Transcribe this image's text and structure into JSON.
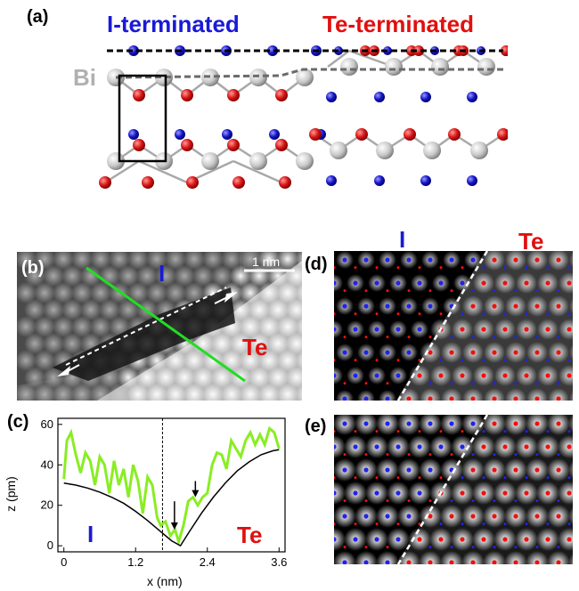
{
  "figure": {
    "panels": {
      "a": {
        "label": "(a)",
        "left_title": "I-terminated",
        "right_title": "Te-terminated",
        "bi_label": "Bi",
        "colors": {
          "iodine": "#1414b4",
          "tellurium": "#d61414",
          "bismuth": "#b4b4b4",
          "title_blue": "#1a1ad6",
          "title_red": "#e01010"
        }
      },
      "b": {
        "label": "(b)",
        "scale_bar": "1 nm",
        "left_region": "I",
        "right_region": "Te",
        "line_profile_color": "#22dd22"
      },
      "c": {
        "label": "(c)",
        "left_region": "I",
        "right_region": "Te"
      },
      "d": {
        "label": "(d)",
        "left_region": "I",
        "right_region": "Te"
      },
      "e": {
        "label": "(e)"
      }
    }
  },
  "chart_data": {
    "type": "line",
    "xlabel": "x (nm)",
    "ylabel": "z (pm)",
    "xlim": [
      -0.1,
      3.7
    ],
    "ylim": [
      -3,
      63
    ],
    "xticks": [
      "0",
      "1.2",
      "2.4",
      "3.6"
    ],
    "yticks": [
      "0",
      "20",
      "40",
      "60"
    ],
    "vline_x": 1.65,
    "series": [
      {
        "color": "#88ee22",
        "x": [
          0.0,
          0.05,
          0.12,
          0.2,
          0.28,
          0.36,
          0.44,
          0.52,
          0.6,
          0.68,
          0.76,
          0.84,
          0.92,
          1.0,
          1.08,
          1.16,
          1.24,
          1.32,
          1.4,
          1.48,
          1.56,
          1.62,
          1.7,
          1.78,
          1.86,
          1.92,
          2.0,
          2.08,
          2.16,
          2.24,
          2.32,
          2.4,
          2.48,
          2.56,
          2.64,
          2.72,
          2.8,
          2.88,
          2.96,
          3.04,
          3.12,
          3.2,
          3.28,
          3.36,
          3.44,
          3.52,
          3.6
        ],
        "y": [
          33,
          52,
          56,
          45,
          36,
          46,
          42,
          30,
          44,
          40,
          26,
          42,
          30,
          38,
          24,
          40,
          32,
          16,
          34,
          30,
          14,
          10,
          12,
          5,
          8,
          2,
          10,
          22,
          24,
          20,
          24,
          26,
          40,
          46,
          45,
          38,
          52,
          48,
          44,
          52,
          56,
          50,
          55,
          50,
          58,
          56,
          48
        ]
      },
      {
        "color": "#000000",
        "x": [
          0.0,
          0.2,
          0.4,
          0.6,
          0.8,
          1.0,
          1.2,
          1.4,
          1.6,
          1.8,
          1.95,
          2.1,
          2.3,
          2.5,
          2.7,
          2.9,
          3.1,
          3.3,
          3.5,
          3.6
        ],
        "y": [
          31,
          30,
          28.5,
          26.5,
          24,
          21,
          17,
          12.5,
          7.5,
          2.5,
          0,
          7,
          16,
          24,
          31,
          37,
          41.5,
          45,
          47,
          47.5
        ]
      }
    ],
    "annotations": [
      {
        "type": "arrow-down",
        "x": 1.85,
        "y_from": 22,
        "y_to": 8
      },
      {
        "type": "arrow-down",
        "x": 2.2,
        "y_from": 32,
        "y_to": 24
      }
    ]
  }
}
